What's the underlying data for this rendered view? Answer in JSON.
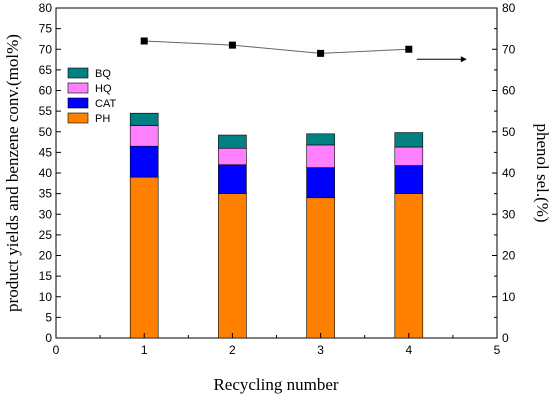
{
  "chart_data": {
    "type": "bar",
    "stacked": true,
    "xlabel": "Recycling number",
    "ylabel": "product yields and benzene conv.(mol%)",
    "y2label": "phenol sel.(%)",
    "xlim": [
      0,
      5
    ],
    "ylim": [
      0,
      80
    ],
    "y2lim": [
      0,
      80
    ],
    "x_ticks": [
      "0",
      "1",
      "2",
      "3",
      "4",
      "5"
    ],
    "y_ticks": [
      "0",
      "5",
      "10",
      "15",
      "20",
      "25",
      "30",
      "35",
      "40",
      "45",
      "50",
      "55",
      "60",
      "65",
      "70",
      "75",
      "80"
    ],
    "y2_ticks": [
      "0",
      "10",
      "20",
      "30",
      "40",
      "50",
      "60",
      "70",
      "80"
    ],
    "x": [
      1,
      2,
      3,
      4
    ],
    "series": [
      {
        "name": "PH",
        "color": "#ff8000",
        "values": [
          39,
          35,
          34,
          35
        ]
      },
      {
        "name": "CAT",
        "color": "#0000ff",
        "values": [
          7.5,
          7,
          7.3,
          6.8
        ]
      },
      {
        "name": "HQ",
        "color": "#ff80ff",
        "values": [
          5,
          4,
          5.5,
          4.5
        ]
      },
      {
        "name": "BQ",
        "color": "#008080",
        "values": [
          3,
          3.2,
          2.7,
          3.5
        ]
      }
    ],
    "line_series": {
      "axis": "right",
      "color": "#000000",
      "marker": "square",
      "values": [
        72,
        71,
        69,
        70
      ]
    },
    "legend": {
      "placement": "upper-left",
      "order": [
        "BQ",
        "HQ",
        "CAT",
        "PH"
      ]
    },
    "grid": false
  }
}
